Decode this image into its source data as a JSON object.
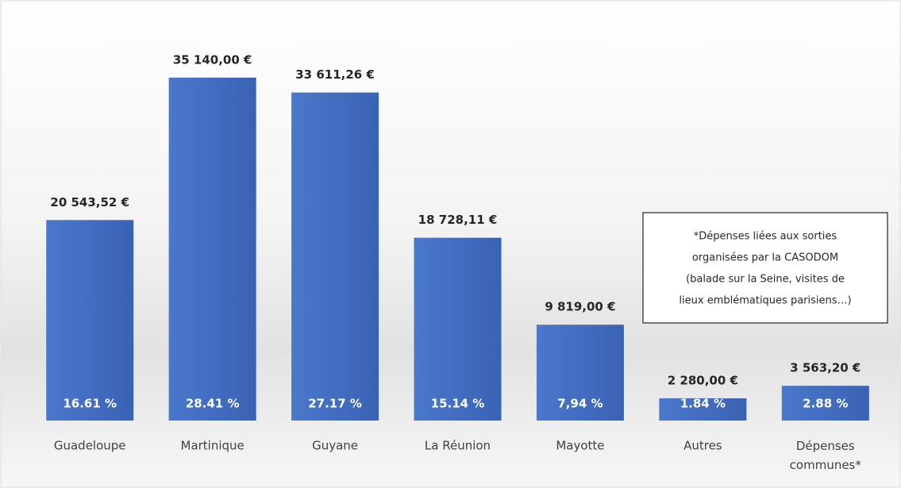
{
  "chart_data": {
    "type": "bar",
    "categories": [
      "Guadeloupe",
      "Martinique",
      "Guyane",
      "La Réunion",
      "Mayotte",
      "Autres",
      "Dépenses\ncommunes*"
    ],
    "values": [
      20543.52,
      35140.0,
      33611.26,
      18728.11,
      9819.0,
      2280.0,
      3563.2
    ],
    "value_labels": [
      "20 543,52 €",
      "35 140,00 €",
      "33 611,26 €",
      "18 728,11 €",
      "9 819,00 €",
      "2 280,00 €",
      "3 563,20 €"
    ],
    "percent_labels": [
      "16.61 %",
      "28.41 %",
      "27.17 %",
      "15.14 %",
      "7,94 %",
      "1.84 %",
      "2.88 %"
    ],
    "color": "#4472c4",
    "ylim": [
      0,
      40000
    ],
    "annotation": [
      "*Dépenses liées aux sorties",
      "organisées par la CASODOM",
      "(balade sur la Seine, visites de",
      "lieux emblématiques parisiens…)"
    ]
  }
}
